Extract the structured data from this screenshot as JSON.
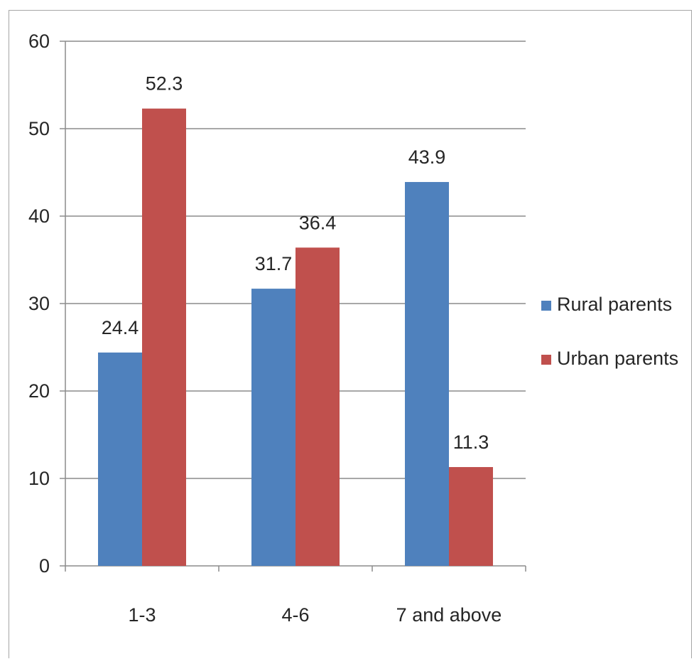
{
  "chart_data": {
    "type": "bar",
    "categories": [
      "1-3",
      "4-6",
      "7 and above"
    ],
    "series": [
      {
        "name": "Rural parents",
        "color": "#4f81bd",
        "values": [
          24.4,
          31.7,
          43.9
        ]
      },
      {
        "name": "Urban parents",
        "color": "#c0504d",
        "values": [
          52.3,
          36.4,
          11.3
        ]
      }
    ],
    "title": "",
    "xlabel": "",
    "ylabel": "",
    "ylim": [
      0,
      60
    ],
    "yticks": [
      0,
      10,
      20,
      30,
      40,
      50,
      60
    ],
    "grid": true,
    "legend_position": "right"
  }
}
